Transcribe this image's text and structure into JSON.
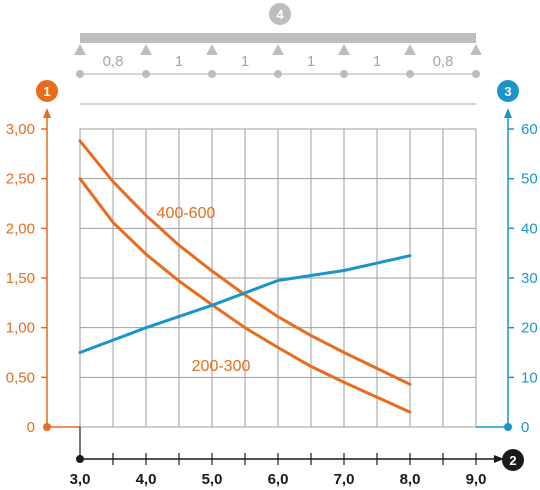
{
  "colors": {
    "orange": "#E86B1E",
    "blue": "#1B95C9",
    "grey": "#BDBDBD",
    "grid": "#9E9E9E",
    "black": "#1A1A1A"
  },
  "markers": {
    "left_axis": "1",
    "x_axis": "2",
    "right_axis": "3",
    "span_beam": "4"
  },
  "span_diagram": {
    "spans": [
      "0,8",
      "1",
      "1",
      "1",
      "1",
      "0,8"
    ]
  },
  "chart_data": {
    "type": "line",
    "x": {
      "ticks": [
        "3,0",
        "4,0",
        "5,0",
        "6,0",
        "7,0",
        "8,0",
        "9,0"
      ],
      "range": [
        3.0,
        9.0
      ]
    },
    "y_left": {
      "ticks": [
        "0",
        "0,50",
        "1,00",
        "1,50",
        "2,00",
        "2,50",
        "3,00"
      ],
      "range": [
        0,
        3.0
      ]
    },
    "y_right": {
      "ticks": [
        "0",
        "10",
        "20",
        "30",
        "40",
        "50",
        "60"
      ],
      "range": [
        0,
        60
      ]
    },
    "grid": true,
    "series": [
      {
        "name": "400-600",
        "axis": "left",
        "color": "orange",
        "points": [
          [
            3.0,
            2.88
          ],
          [
            3.5,
            2.47
          ],
          [
            4.0,
            2.13
          ],
          [
            4.5,
            1.83
          ],
          [
            5.0,
            1.57
          ],
          [
            5.5,
            1.33
          ],
          [
            6.0,
            1.11
          ],
          [
            6.5,
            0.92
          ],
          [
            7.0,
            0.75
          ],
          [
            7.5,
            0.59
          ],
          [
            8.0,
            0.43
          ]
        ]
      },
      {
        "name": "200-300",
        "axis": "left",
        "color": "orange",
        "points": [
          [
            3.0,
            2.5
          ],
          [
            3.5,
            2.06
          ],
          [
            4.0,
            1.74
          ],
          [
            4.5,
            1.47
          ],
          [
            5.0,
            1.23
          ],
          [
            5.5,
            1.0
          ],
          [
            6.0,
            0.8
          ],
          [
            6.5,
            0.61
          ],
          [
            7.0,
            0.45
          ],
          [
            7.5,
            0.3
          ],
          [
            8.0,
            0.15
          ]
        ]
      },
      {
        "name": "",
        "axis": "right",
        "color": "blue",
        "points": [
          [
            3.0,
            15.0
          ],
          [
            4.0,
            20.0
          ],
          [
            5.0,
            24.5
          ],
          [
            6.0,
            29.5
          ],
          [
            7.0,
            31.5
          ],
          [
            8.0,
            34.5
          ]
        ]
      }
    ]
  }
}
